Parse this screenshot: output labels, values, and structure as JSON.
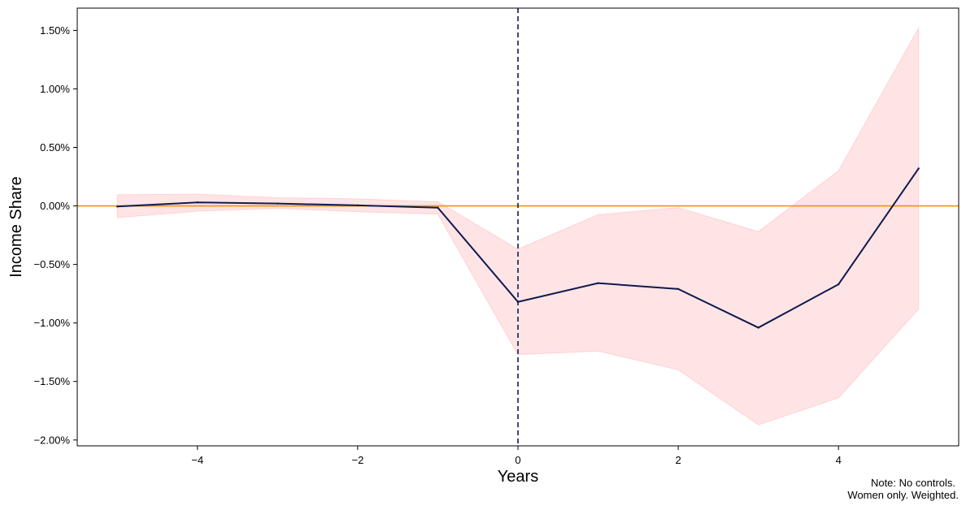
{
  "chart_data": {
    "type": "line",
    "title": "",
    "xlabel": "Years",
    "ylabel": "Income Share",
    "xlim": [
      -5.5,
      5.5
    ],
    "ylim": [
      -0.0205,
      0.0169
    ],
    "x_ticks": [
      -4,
      -2,
      0,
      2,
      4
    ],
    "x_tick_labels": [
      "−4",
      "−2",
      "0",
      "2",
      "4"
    ],
    "y_ticks": [
      -0.02,
      -0.015,
      -0.01,
      -0.005,
      0.0,
      0.005,
      0.01,
      0.015
    ],
    "y_tick_labels": [
      "−2.00%",
      "−1.50%",
      "−1.00%",
      "−0.50%",
      "0.00%",
      "0.50%",
      "1.00%",
      "1.50%"
    ],
    "grid": false,
    "series": [
      {
        "x": [
          -5,
          -4,
          -3,
          -2,
          -1,
          0,
          1,
          2,
          3,
          4,
          5
        ],
        "y": [
          -5e-05,
          0.0003,
          0.0002,
          5e-05,
          -0.00015,
          -0.0082,
          -0.0066,
          -0.0071,
          -0.0104,
          -0.0067,
          0.0032
        ],
        "lower": [
          -0.001,
          -0.00045,
          -0.0002,
          -0.0005,
          -0.0007,
          -0.0127,
          -0.0124,
          -0.014,
          -0.0187,
          -0.0164,
          -0.0088
        ],
        "upper": [
          0.00095,
          0.001,
          0.0007,
          0.0006,
          0.00035,
          -0.0037,
          -0.00075,
          -0.00015,
          -0.0022,
          0.003,
          0.0152
        ],
        "color": "#0f1a4f",
        "band_color": "#ffb3b8"
      }
    ],
    "reference_lines": [
      {
        "orientation": "horizontal",
        "value": 0.0,
        "color": "#f0950a",
        "style": "solid"
      },
      {
        "orientation": "vertical",
        "value": 0,
        "color": "#0f1a4f",
        "style": "dashed"
      }
    ],
    "annotations": [
      "Note: No controls.",
      "Women only. Weighted."
    ]
  }
}
